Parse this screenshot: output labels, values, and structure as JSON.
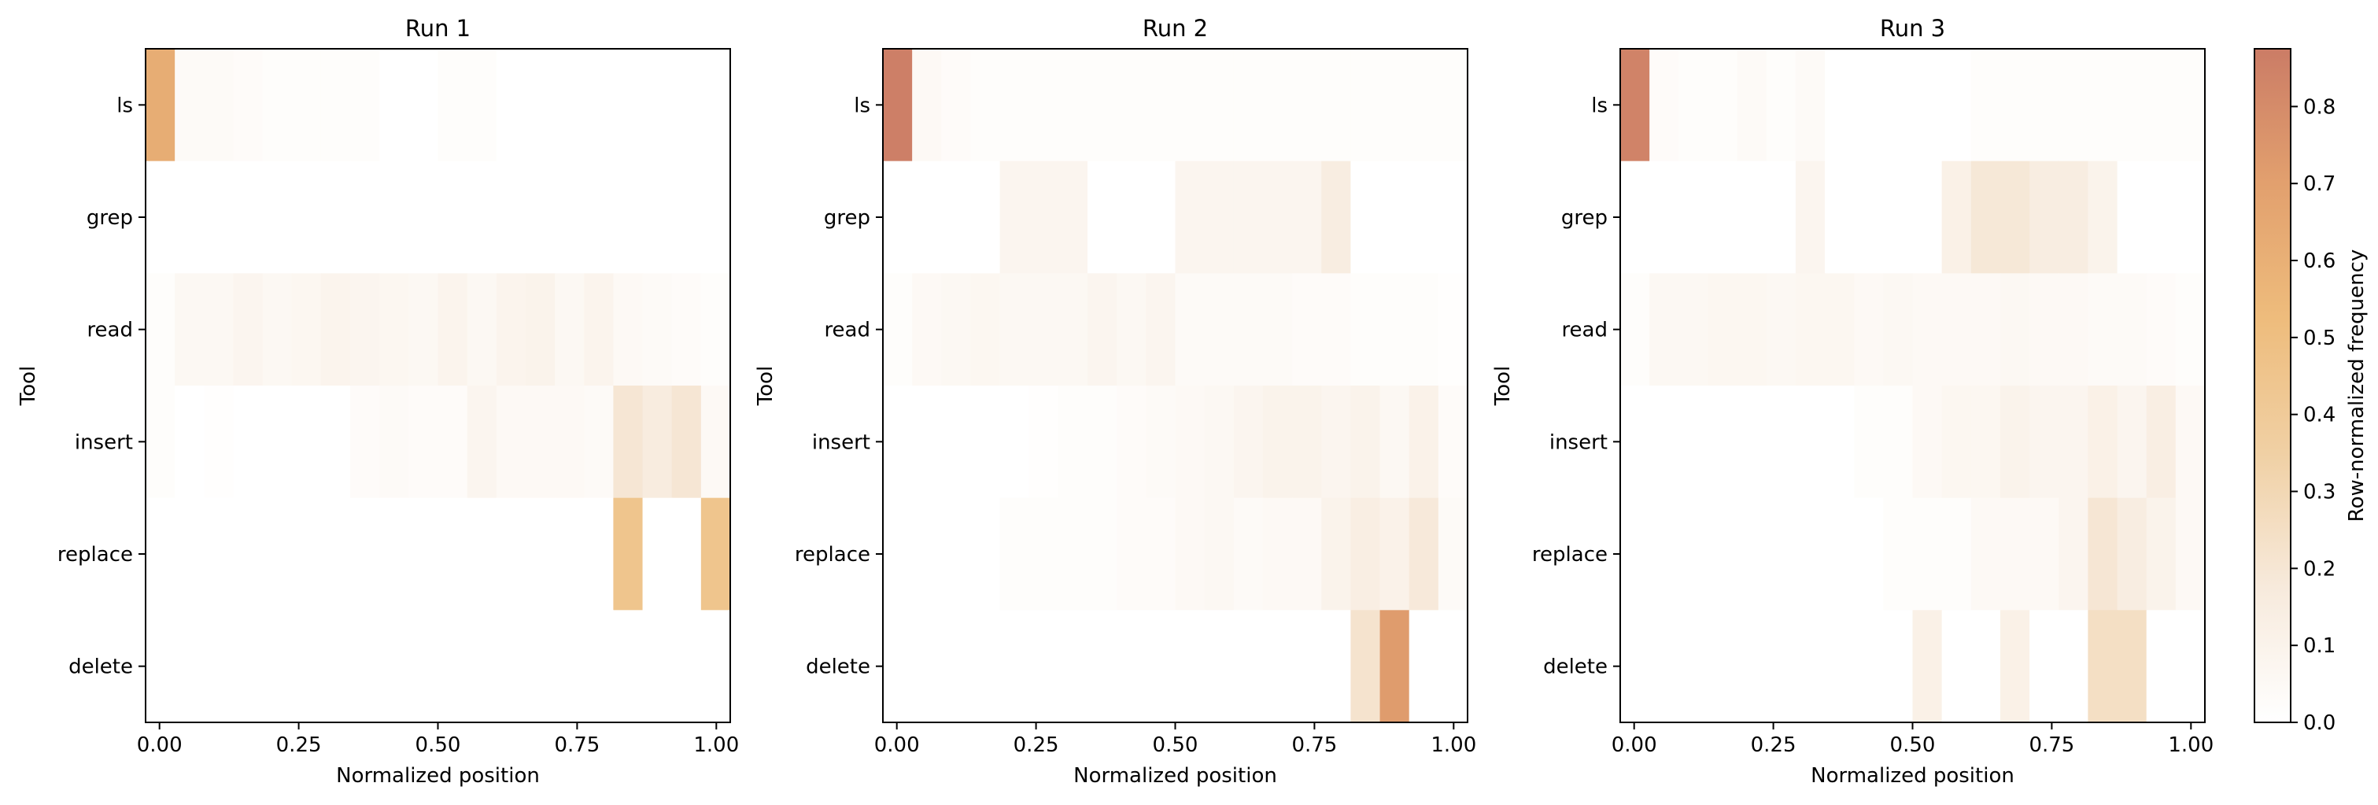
{
  "chart_data": {
    "type": "heatmap",
    "y_categories": [
      "ls",
      "grep",
      "read",
      "insert",
      "replace",
      "delete"
    ],
    "x_bins": 20,
    "x_range": [
      -0.025,
      1.025
    ],
    "x_ticks": [
      0.0,
      0.25,
      0.5,
      0.75,
      1.0
    ],
    "x_tick_labels": [
      "0.00",
      "0.25",
      "0.50",
      "0.75",
      "1.00"
    ],
    "xlabel": "Normalized position",
    "ylabel": "Tool",
    "panels": [
      {
        "title": "Run 1",
        "matrix": [
          [
            0.62,
            0.04,
            0.04,
            0.03,
            0.02,
            0.02,
            0.02,
            0.02,
            0.0,
            0.0,
            0.02,
            0.02,
            0.0,
            0.0,
            0.0,
            0.0,
            0.0,
            0.0,
            0.0,
            0.0
          ],
          [
            0.0,
            0.0,
            0.0,
            0.0,
            0.0,
            0.0,
            0.0,
            0.0,
            0.0,
            0.0,
            0.0,
            0.0,
            0.0,
            0.0,
            0.0,
            0.0,
            0.0,
            0.0,
            0.0,
            0.0
          ],
          [
            0.02,
            0.06,
            0.06,
            0.08,
            0.06,
            0.07,
            0.09,
            0.08,
            0.07,
            0.06,
            0.09,
            0.06,
            0.09,
            0.1,
            0.06,
            0.09,
            0.05,
            0.04,
            0.03,
            0.02
          ],
          [
            0.02,
            0.0,
            0.01,
            0.0,
            0.0,
            0.0,
            0.0,
            0.03,
            0.04,
            0.03,
            0.03,
            0.08,
            0.05,
            0.05,
            0.05,
            0.04,
            0.2,
            0.16,
            0.2,
            0.05
          ],
          [
            0.0,
            0.0,
            0.0,
            0.0,
            0.0,
            0.0,
            0.0,
            0.0,
            0.0,
            0.0,
            0.0,
            0.0,
            0.0,
            0.0,
            0.0,
            0.0,
            0.45,
            0.0,
            0.0,
            0.45
          ],
          [
            0.0,
            0.0,
            0.0,
            0.0,
            0.0,
            0.0,
            0.0,
            0.0,
            0.0,
            0.0,
            0.0,
            0.0,
            0.0,
            0.0,
            0.0,
            0.0,
            0.0,
            0.0,
            0.0,
            0.0
          ]
        ]
      },
      {
        "title": "Run 2",
        "matrix": [
          [
            0.86,
            0.05,
            0.03,
            0.02,
            0.02,
            0.02,
            0.02,
            0.02,
            0.02,
            0.02,
            0.02,
            0.02,
            0.02,
            0.02,
            0.02,
            0.02,
            0.02,
            0.02,
            0.02,
            0.02
          ],
          [
            0.0,
            0.0,
            0.0,
            0.0,
            0.08,
            0.08,
            0.08,
            0.0,
            0.0,
            0.0,
            0.08,
            0.08,
            0.08,
            0.08,
            0.08,
            0.15,
            0.0,
            0.0,
            0.0,
            0.0
          ],
          [
            0.02,
            0.05,
            0.06,
            0.07,
            0.06,
            0.06,
            0.06,
            0.08,
            0.06,
            0.08,
            0.04,
            0.04,
            0.04,
            0.04,
            0.03,
            0.03,
            0.02,
            0.02,
            0.02,
            0.01
          ],
          [
            0.0,
            0.0,
            0.0,
            0.0,
            0.0,
            0.01,
            0.02,
            0.02,
            0.03,
            0.04,
            0.05,
            0.06,
            0.08,
            0.1,
            0.1,
            0.08,
            0.1,
            0.06,
            0.11,
            0.03
          ],
          [
            0.0,
            0.0,
            0.0,
            0.0,
            0.02,
            0.02,
            0.02,
            0.02,
            0.03,
            0.03,
            0.05,
            0.06,
            0.04,
            0.05,
            0.05,
            0.1,
            0.14,
            0.11,
            0.18,
            0.04
          ],
          [
            0.0,
            0.0,
            0.0,
            0.0,
            0.0,
            0.0,
            0.0,
            0.0,
            0.0,
            0.0,
            0.0,
            0.0,
            0.0,
            0.0,
            0.0,
            0.0,
            0.22,
            0.72,
            0.0,
            0.0
          ]
        ]
      },
      {
        "title": "Run 3",
        "matrix": [
          [
            0.84,
            0.03,
            0.02,
            0.02,
            0.04,
            0.02,
            0.04,
            0.0,
            0.0,
            0.0,
            0.0,
            0.0,
            0.02,
            0.02,
            0.02,
            0.02,
            0.02,
            0.02,
            0.02,
            0.02
          ],
          [
            0.0,
            0.0,
            0.0,
            0.0,
            0.0,
            0.0,
            0.08,
            0.0,
            0.0,
            0.0,
            0.0,
            0.12,
            0.19,
            0.19,
            0.15,
            0.15,
            0.1,
            0.0,
            0.0,
            0.0
          ],
          [
            0.02,
            0.06,
            0.06,
            0.07,
            0.07,
            0.06,
            0.07,
            0.07,
            0.05,
            0.06,
            0.05,
            0.05,
            0.05,
            0.06,
            0.05,
            0.05,
            0.04,
            0.04,
            0.03,
            0.02
          ],
          [
            0.0,
            0.0,
            0.0,
            0.0,
            0.0,
            0.0,
            0.0,
            0.0,
            0.02,
            0.02,
            0.05,
            0.07,
            0.07,
            0.1,
            0.08,
            0.08,
            0.12,
            0.08,
            0.14,
            0.05
          ],
          [
            0.0,
            0.0,
            0.0,
            0.0,
            0.0,
            0.0,
            0.0,
            0.0,
            0.0,
            0.02,
            0.02,
            0.02,
            0.05,
            0.05,
            0.05,
            0.08,
            0.2,
            0.15,
            0.1,
            0.05
          ],
          [
            0.0,
            0.0,
            0.0,
            0.0,
            0.0,
            0.0,
            0.0,
            0.0,
            0.0,
            0.0,
            0.12,
            0.0,
            0.0,
            0.12,
            0.0,
            0.0,
            0.25,
            0.25,
            0.0,
            0.0
          ]
        ]
      }
    ],
    "colorbar": {
      "label": "Row-normalized frequency",
      "range": [
        0,
        0.875
      ],
      "ticks": [
        0.0,
        0.1,
        0.2,
        0.3,
        0.4,
        0.5,
        0.6,
        0.7,
        0.8
      ],
      "tick_labels": [
        "0.0",
        "0.1",
        "0.2",
        "0.3",
        "0.4",
        "0.5",
        "0.6",
        "0.7",
        "0.8"
      ]
    },
    "colormap": [
      "#ffffff",
      "#f7eadc",
      "#f0d0a4",
      "#eebc7c",
      "#e2a06e",
      "#cb7c66"
    ],
    "grid": false,
    "legend": "none"
  }
}
